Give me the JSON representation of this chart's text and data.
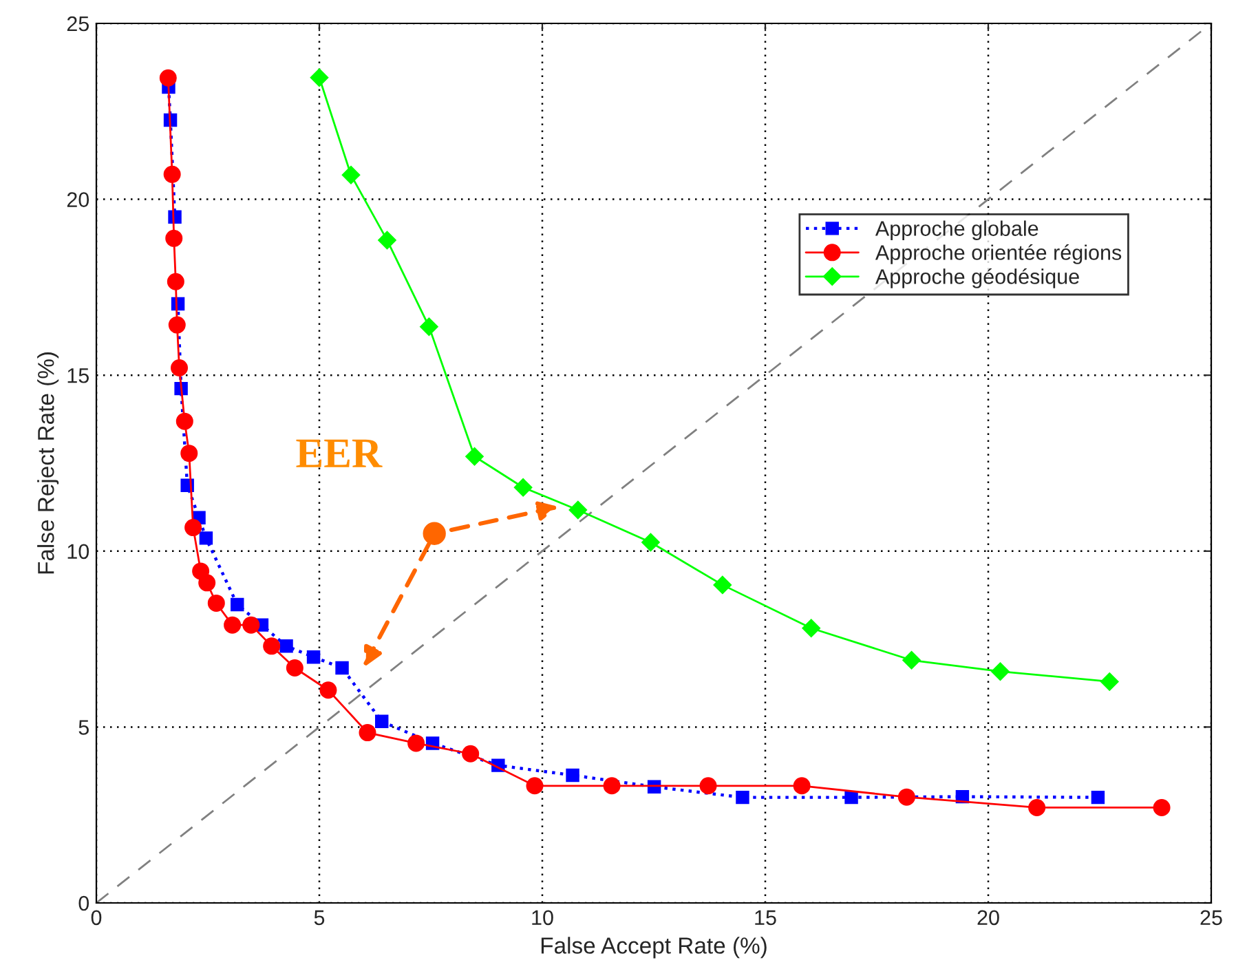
{
  "chart_data": {
    "type": "line",
    "xlabel": "False Accept Rate (%)",
    "ylabel": "False Reject Rate (%)",
    "xlim": [
      0,
      25
    ],
    "ylim": [
      0,
      25
    ],
    "xticks": [
      0,
      5,
      10,
      15,
      20,
      25
    ],
    "yticks": [
      0,
      5,
      10,
      15,
      20,
      25
    ],
    "grid": true,
    "legend": "top right",
    "series": [
      {
        "name": "Approche globale",
        "color": "#0000ff",
        "marker": "square",
        "line_style": "dotted",
        "x": [
          1.62,
          1.66,
          1.76,
          1.79,
          1.83,
          1.9,
          2.04,
          2.3,
          2.46,
          3.16,
          3.71,
          4.26,
          4.87,
          5.51,
          6.4,
          7.54,
          9.01,
          10.68,
          12.51,
          14.49,
          16.93,
          19.42,
          22.46
        ],
        "values": [
          23.19,
          22.25,
          19.5,
          null,
          17.03,
          14.62,
          11.87,
          10.95,
          10.37,
          8.48,
          7.9,
          7.3,
          6.99,
          6.68,
          5.16,
          4.54,
          3.91,
          3.63,
          3.3,
          3.0,
          3.0,
          3.02,
          3.0
        ]
      },
      {
        "name": "Approche orientée régions",
        "color": "#ff0000",
        "marker": "circle",
        "line_style": "solid",
        "x": [
          1.61,
          1.7,
          1.74,
          1.78,
          1.81,
          1.86,
          1.98,
          2.08,
          2.17,
          2.34,
          2.48,
          2.69,
          3.05,
          3.47,
          3.93,
          4.45,
          5.2,
          6.08,
          7.17,
          8.39,
          9.83,
          11.56,
          13.72,
          15.82,
          18.17,
          21.09,
          23.89
        ],
        "values": [
          23.45,
          20.71,
          18.89,
          17.66,
          16.43,
          15.21,
          13.69,
          12.78,
          10.67,
          9.43,
          9.1,
          8.52,
          7.9,
          7.9,
          7.3,
          6.68,
          6.05,
          4.84,
          4.54,
          4.24,
          3.33,
          3.33,
          3.33,
          3.33,
          3.01,
          2.71,
          2.71
        ]
      },
      {
        "name": "Approche géodésique",
        "color": "#00ff00",
        "marker": "diamond",
        "line_style": "solid",
        "x": [
          5.0,
          5.71,
          6.52,
          7.46,
          8.48,
          9.57,
          10.8,
          12.43,
          14.04,
          16.03,
          18.28,
          20.27,
          22.72
        ],
        "values": [
          23.46,
          20.69,
          18.84,
          16.38,
          12.69,
          11.81,
          11.17,
          10.25,
          9.04,
          7.81,
          6.9,
          6.58,
          6.29
        ]
      },
      {
        "color": "#808080",
        "marker": "none",
        "line_style": "dashed",
        "x": [
          0,
          25
        ],
        "values": [
          0,
          25
        ]
      }
    ],
    "annotations": [
      {
        "text": "EER",
        "x": 7.58,
        "y": 10.5
      }
    ]
  }
}
